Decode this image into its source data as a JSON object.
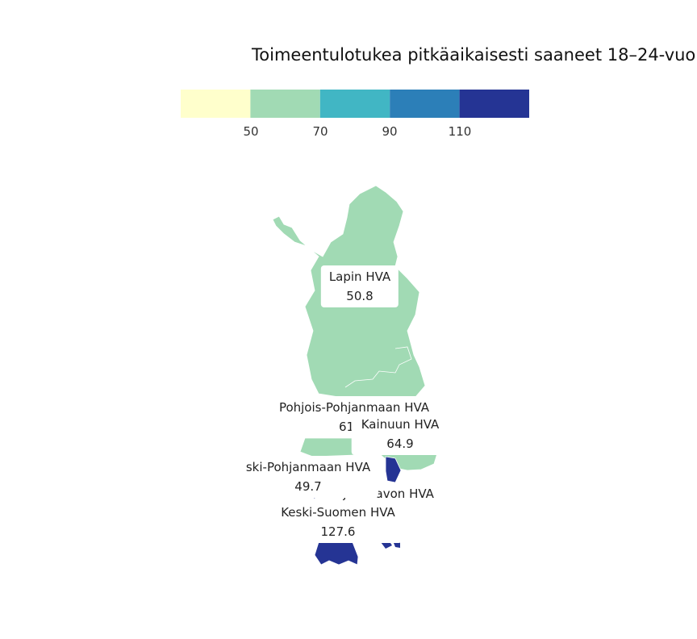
{
  "title": "Toimeentulotukea pitkäaikaisesti saaneet 18–24-vuo",
  "legend": {
    "colors": [
      "#ffffcc",
      "#a1dab4",
      "#41b6c4",
      "#2c7fb8",
      "#253494"
    ],
    "ticks": [
      "50",
      "70",
      "90",
      "110"
    ]
  },
  "regions": [
    {
      "name": "Lapin HVA",
      "value": "50.8",
      "color": "#a1dab4"
    },
    {
      "name": "Pohjois-Pohjanmaan HVA",
      "value": "61",
      "color": "#a1dab4"
    },
    {
      "name": "Kainuun HVA",
      "value": "64.9",
      "color": "#a1dab4"
    },
    {
      "name": "ski-Pohjanmaan HVA",
      "value": "49.7",
      "color": "#a1dab4"
    },
    {
      "name": "Pohjois-Savon HVA",
      "value": "",
      "color": "#253494"
    },
    {
      "name": "Keski-Suomen HVA",
      "value": "127.6",
      "color": "#253494"
    }
  ]
}
